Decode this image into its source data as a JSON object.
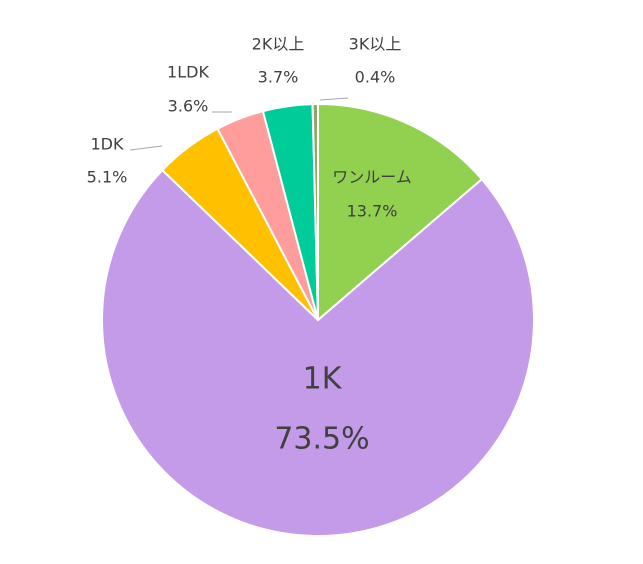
{
  "chart_data": {
    "type": "pie",
    "categories": [
      "ワンルーム",
      "1K",
      "1DK",
      "1LDK",
      "2K以上",
      "3K以上"
    ],
    "values": [
      13.7,
      73.5,
      5.1,
      3.6,
      3.7,
      0.4
    ],
    "value_labels": [
      "13.7%",
      "73.5%",
      "5.1%",
      "3.6%",
      "3.7%",
      "0.4%"
    ],
    "colors": [
      "#92d050",
      "#c39be8",
      "#ffc000",
      "#ff9c9c",
      "#00cc99",
      "#8fa86a"
    ]
  }
}
